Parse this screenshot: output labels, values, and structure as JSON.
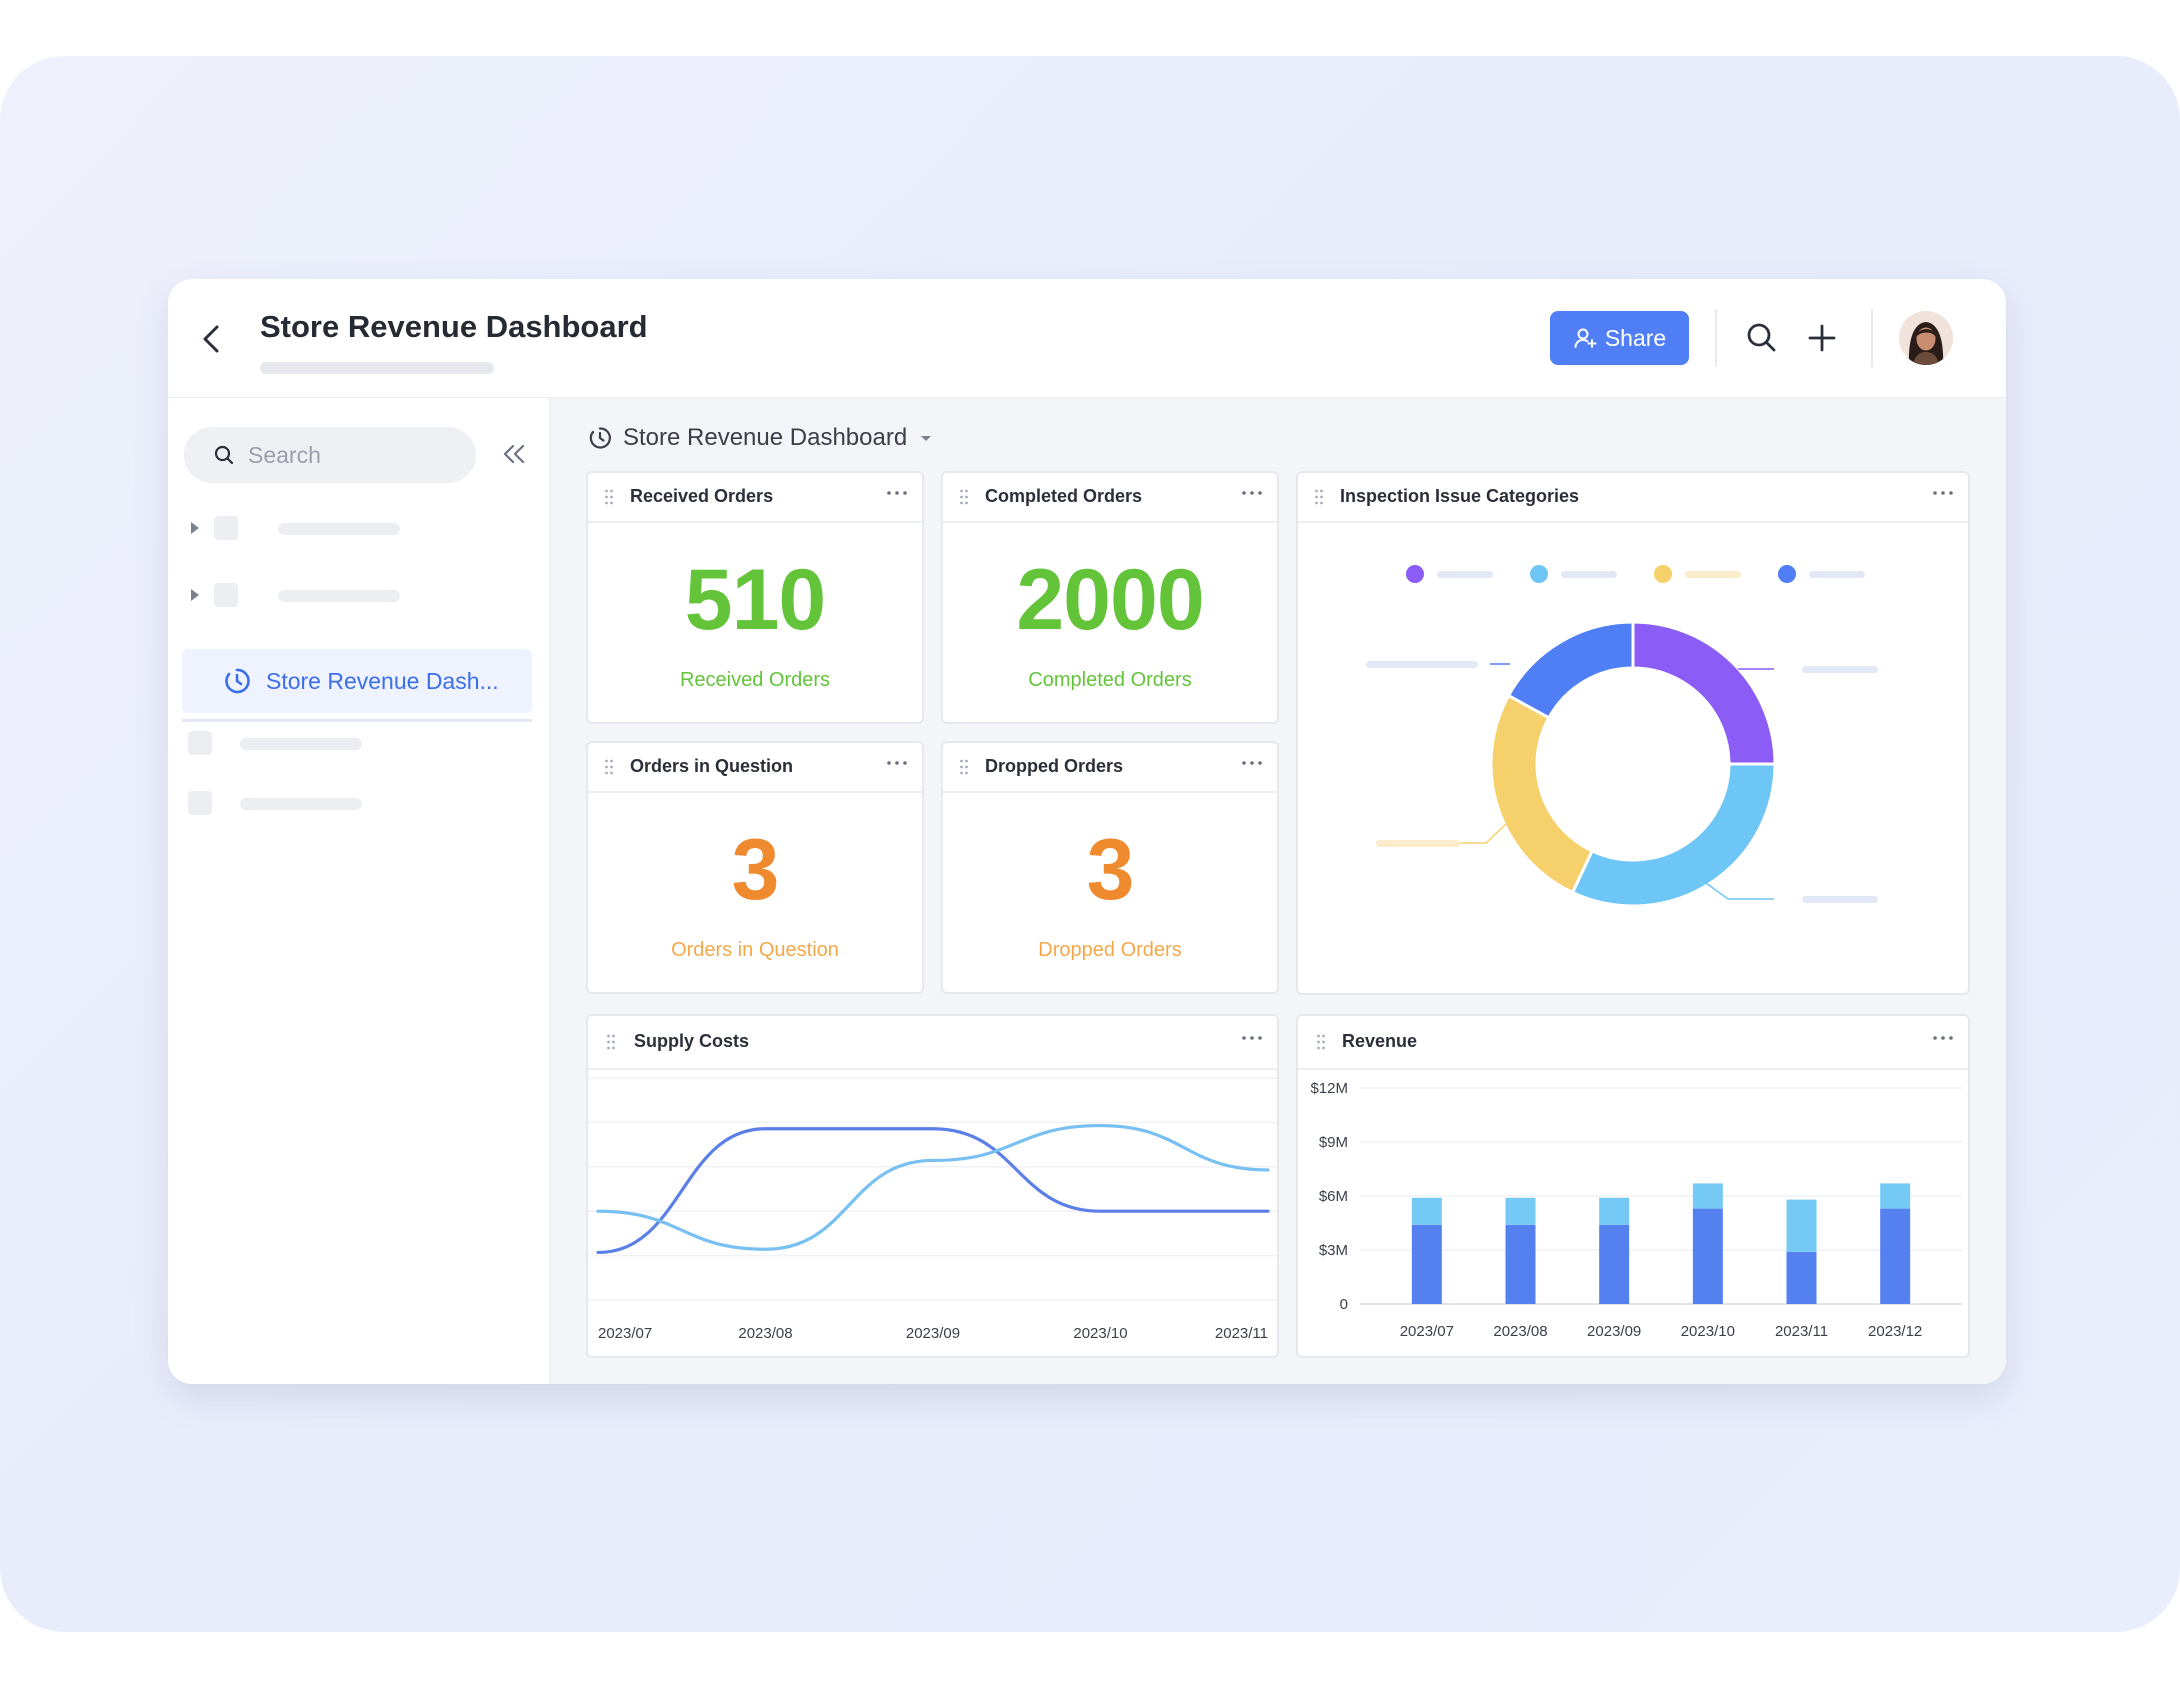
{
  "header": {
    "title": "Store Revenue Dashboard",
    "share_label": "Share",
    "accent": "#4f7ef5"
  },
  "sidebar": {
    "search_placeholder": "Search",
    "active_item": "Store Revenue Dash..."
  },
  "board": {
    "title": "Store Revenue Dashboard"
  },
  "widgets": {
    "received": {
      "title": "Received Orders",
      "value": "510",
      "label": "Received Orders",
      "color": "#63c43a"
    },
    "completed": {
      "title": "Completed Orders",
      "value": "2000",
      "label": "Completed Orders",
      "color": "#63c43a"
    },
    "question": {
      "title": "Orders in Question",
      "value": "3",
      "label": "Orders in Question",
      "color": "#f08a2e"
    },
    "dropped": {
      "title": "Dropped Orders",
      "value": "3",
      "label": "Dropped Orders",
      "color": "#f08a2e"
    },
    "inspection": {
      "title": "Inspection Issue Categories"
    },
    "supply": {
      "title": "Supply Costs"
    },
    "revenue": {
      "title": "Revenue"
    }
  },
  "chart_data": [
    {
      "type": "pie",
      "subtype": "donut",
      "title": "Inspection Issue Categories",
      "values": [
        25,
        32,
        26,
        17
      ],
      "colors": [
        "#8b5cf6",
        "#6ec6f6",
        "#f6d06b",
        "#4f7ef5"
      ],
      "legend": "top"
    },
    {
      "type": "line",
      "title": "Supply Costs",
      "x": [
        "2023/07",
        "2023/08",
        "2023/09",
        "2023/10",
        "2023/11"
      ],
      "series": [
        {
          "values": [
            1.5,
            5.4,
            5.4,
            2.8,
            2.8
          ],
          "color": "#5b7fe6"
        },
        {
          "values": [
            2.8,
            1.6,
            4.4,
            5.5,
            4.1
          ],
          "color": "#78bff2"
        }
      ],
      "ylim": [
        0,
        7
      ],
      "grid": true
    },
    {
      "type": "bar",
      "stacked": true,
      "title": "Revenue",
      "categories": [
        "2023/07",
        "2023/08",
        "2023/09",
        "2023/10",
        "2023/11",
        "2023/12"
      ],
      "series": [
        {
          "values": [
            4.4,
            4.4,
            4.4,
            5.3,
            2.9,
            5.3
          ],
          "color": "#5580f0"
        },
        {
          "values": [
            1.5,
            1.5,
            1.5,
            1.4,
            2.9,
            1.4
          ],
          "color": "#74c9f5"
        }
      ],
      "yticks": [
        "0",
        "$3M",
        "$6M",
        "$9M",
        "$12M"
      ],
      "ylim": [
        0,
        12
      ],
      "grid": true
    }
  ]
}
